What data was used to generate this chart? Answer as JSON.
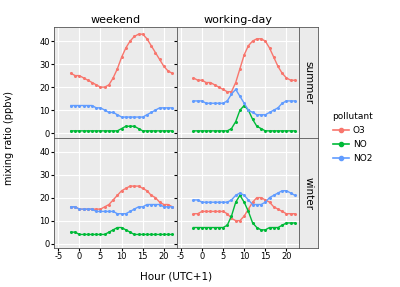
{
  "hours": [
    -2,
    -1,
    0,
    1,
    2,
    3,
    4,
    5,
    6,
    7,
    8,
    9,
    10,
    11,
    12,
    13,
    14,
    15,
    16,
    17,
    18,
    19,
    20,
    21,
    22
  ],
  "summer_weekend_O3": [
    26,
    25,
    25,
    24,
    23,
    22,
    21,
    20,
    20,
    21,
    24,
    28,
    33,
    37,
    40,
    42,
    43,
    43,
    41,
    38,
    35,
    32,
    29,
    27,
    26
  ],
  "summer_weekend_NO": [
    1,
    1,
    1,
    1,
    1,
    1,
    1,
    1,
    1,
    1,
    1,
    1,
    2,
    3,
    3,
    3,
    2,
    1,
    1,
    1,
    1,
    1,
    1,
    1,
    1
  ],
  "summer_weekend_NO2": [
    12,
    12,
    12,
    12,
    12,
    12,
    11,
    11,
    10,
    9,
    9,
    8,
    7,
    7,
    7,
    7,
    7,
    7,
    8,
    9,
    10,
    11,
    11,
    11,
    11
  ],
  "summer_workday_O3": [
    24,
    23,
    23,
    22,
    22,
    21,
    20,
    19,
    18,
    18,
    22,
    28,
    34,
    38,
    40,
    41,
    41,
    40,
    37,
    33,
    29,
    26,
    24,
    23,
    23
  ],
  "summer_workday_NO": [
    1,
    1,
    1,
    1,
    1,
    1,
    1,
    1,
    1,
    2,
    5,
    10,
    12,
    10,
    6,
    3,
    2,
    1,
    1,
    1,
    1,
    1,
    1,
    1,
    1
  ],
  "summer_workday_NO2": [
    14,
    14,
    14,
    13,
    13,
    13,
    13,
    13,
    14,
    17,
    19,
    16,
    13,
    10,
    9,
    8,
    8,
    8,
    9,
    10,
    11,
    13,
    14,
    14,
    14
  ],
  "winter_weekend_O3": [
    16,
    16,
    15,
    15,
    15,
    15,
    15,
    15,
    16,
    17,
    19,
    21,
    23,
    24,
    25,
    25,
    25,
    24,
    23,
    21,
    20,
    18,
    17,
    17,
    16
  ],
  "winter_weekend_NO": [
    5,
    5,
    4,
    4,
    4,
    4,
    4,
    4,
    4,
    5,
    6,
    7,
    7,
    6,
    5,
    4,
    4,
    4,
    4,
    4,
    4,
    4,
    4,
    4,
    4
  ],
  "winter_weekend_NO2": [
    16,
    16,
    15,
    15,
    15,
    15,
    14,
    14,
    14,
    14,
    14,
    13,
    13,
    13,
    14,
    15,
    16,
    16,
    17,
    17,
    17,
    17,
    16,
    16,
    16
  ],
  "winter_workday_O3": [
    13,
    13,
    14,
    14,
    14,
    14,
    14,
    14,
    13,
    11,
    10,
    10,
    12,
    15,
    18,
    20,
    20,
    19,
    18,
    16,
    15,
    14,
    13,
    13,
    13
  ],
  "winter_workday_NO": [
    7,
    7,
    7,
    7,
    7,
    7,
    7,
    7,
    8,
    12,
    18,
    21,
    18,
    14,
    9,
    7,
    6,
    6,
    7,
    7,
    7,
    8,
    9,
    9,
    9
  ],
  "winter_workday_NO2": [
    19,
    19,
    18,
    18,
    18,
    18,
    18,
    18,
    18,
    19,
    21,
    22,
    21,
    19,
    17,
    17,
    17,
    18,
    20,
    21,
    22,
    23,
    23,
    22,
    21
  ],
  "color_O3": "#F8766D",
  "color_NO": "#00BA38",
  "color_NO2": "#619CFF",
  "bg_color": "#EBEBEB",
  "grid_color": "white",
  "title_weekend": "weekend",
  "title_workday": "working-day",
  "label_summer": "summer",
  "label_winter": "winter",
  "xlabel": "Hour (UTC+1)",
  "ylabel": "mixing ratio (ppbv)",
  "legend_title": "pollutant",
  "xticks": [
    -5,
    0,
    5,
    10,
    15,
    20
  ],
  "yticks": [
    0,
    10,
    20,
    30,
    40
  ],
  "xlim": [
    -6,
    23
  ],
  "ylim": [
    -2,
    46
  ]
}
